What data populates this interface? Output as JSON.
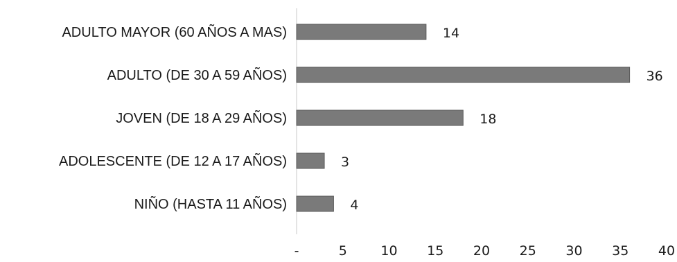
{
  "chart_data": {
    "type": "bar",
    "orientation": "horizontal",
    "categories": [
      "ADULTO MAYOR (60 AÑOS A MAS)",
      "ADULTO (DE 30 A 59 AÑOS)",
      "JOVEN (DE 18 A 29 AÑOS)",
      "ADOLESCENTE (DE 12 A 17 AÑOS)",
      "NIÑO (HASTA 11 AÑOS)"
    ],
    "values": [
      14,
      36,
      18,
      3,
      4
    ],
    "data_labels": [
      "14",
      "36",
      "18",
      "3",
      "4"
    ],
    "xlim": [
      0,
      40
    ],
    "x_ticks": [
      0,
      5,
      10,
      15,
      20,
      25,
      30,
      35,
      40
    ],
    "x_tick_labels": [
      "-",
      "5",
      "10",
      "15",
      "20",
      "25",
      "30",
      "35",
      "40"
    ],
    "title": "",
    "xlabel": "",
    "ylabel": "",
    "grid": false,
    "legend": "none",
    "bar_color": "#7a7a7a"
  }
}
